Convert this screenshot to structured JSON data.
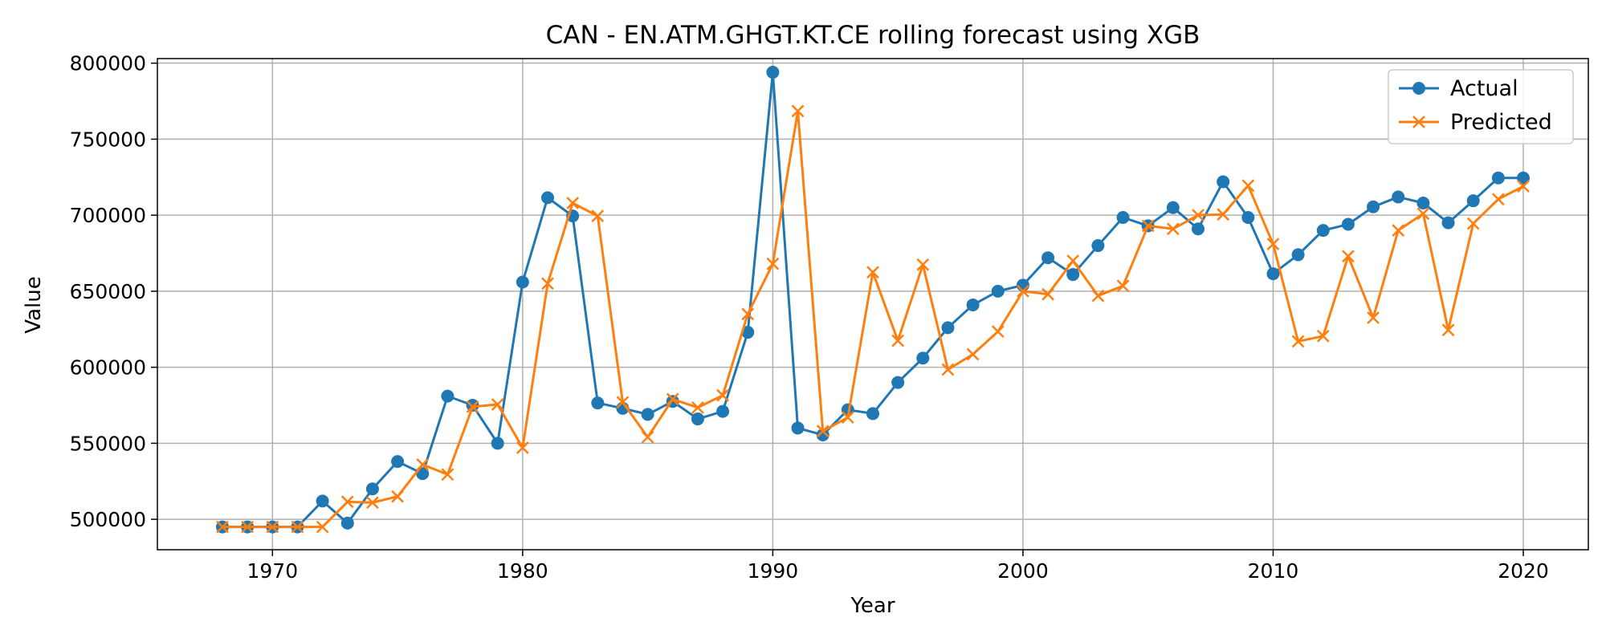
{
  "chart_data": {
    "type": "line",
    "title": "CAN - EN.ATM.GHGT.KT.CE rolling forecast using XGB",
    "xlabel": "Year",
    "ylabel": "Value",
    "xlim": [
      1965.4,
      2022.6
    ],
    "ylim": [
      480000,
      803000
    ],
    "xticks": [
      1970,
      1980,
      1990,
      2000,
      2010,
      2020
    ],
    "xtick_labels": [
      "1970",
      "1980",
      "1990",
      "2000",
      "2010",
      "2020"
    ],
    "yticks": [
      500000,
      550000,
      600000,
      650000,
      700000,
      750000,
      800000
    ],
    "ytick_labels": [
      "500000",
      "550000",
      "600000",
      "650000",
      "700000",
      "750000",
      "800000"
    ],
    "grid": true,
    "legend_position": "top-right",
    "x": [
      1968,
      1969,
      1970,
      1971,
      1972,
      1973,
      1974,
      1975,
      1976,
      1977,
      1978,
      1979,
      1980,
      1981,
      1982,
      1983,
      1984,
      1985,
      1986,
      1987,
      1988,
      1989,
      1990,
      1991,
      1992,
      1993,
      1994,
      1995,
      1996,
      1997,
      1998,
      1999,
      2000,
      2001,
      2002,
      2003,
      2004,
      2005,
      2006,
      2007,
      2008,
      2009,
      2010,
      2011,
      2012,
      2013,
      2014,
      2015,
      2016,
      2017,
      2018,
      2019,
      2020
    ],
    "series": [
      {
        "name": "Actual",
        "color": "#1f77b4",
        "marker": "circle",
        "values": [
          495000,
          495000,
          495000,
          495000,
          512000,
          497500,
          520000,
          538000,
          530000,
          581000,
          575000,
          550000,
          656000,
          711500,
          699500,
          576500,
          573000,
          569000,
          577500,
          566000,
          571000,
          623000,
          794000,
          560000,
          555500,
          572000,
          569500,
          590000,
          606000,
          626000,
          641000,
          650000,
          654000,
          672000,
          661000,
          680000,
          698500,
          693000,
          705000,
          691000,
          722000,
          698500,
          661500,
          674000,
          690000,
          694000,
          705500,
          712000,
          708000,
          695000,
          709500,
          724500,
          724500
        ]
      },
      {
        "name": "Predicted",
        "color": "#ff7f0e",
        "marker": "x",
        "values": [
          495000,
          495000,
          495000,
          495000,
          495000,
          511500,
          511000,
          515000,
          536000,
          529500,
          574000,
          575500,
          547000,
          655000,
          708000,
          699500,
          577000,
          554000,
          579000,
          573500,
          581500,
          635000,
          668000,
          768500,
          558000,
          567000,
          662500,
          617500,
          667500,
          598500,
          608500,
          623500,
          650000,
          648000,
          670000,
          647000,
          653500,
          693000,
          691000,
          700000,
          700500,
          719500,
          681000,
          617000,
          620500,
          673000,
          632500,
          690000,
          701000,
          624500,
          694500,
          710500,
          719000
        ]
      }
    ]
  }
}
